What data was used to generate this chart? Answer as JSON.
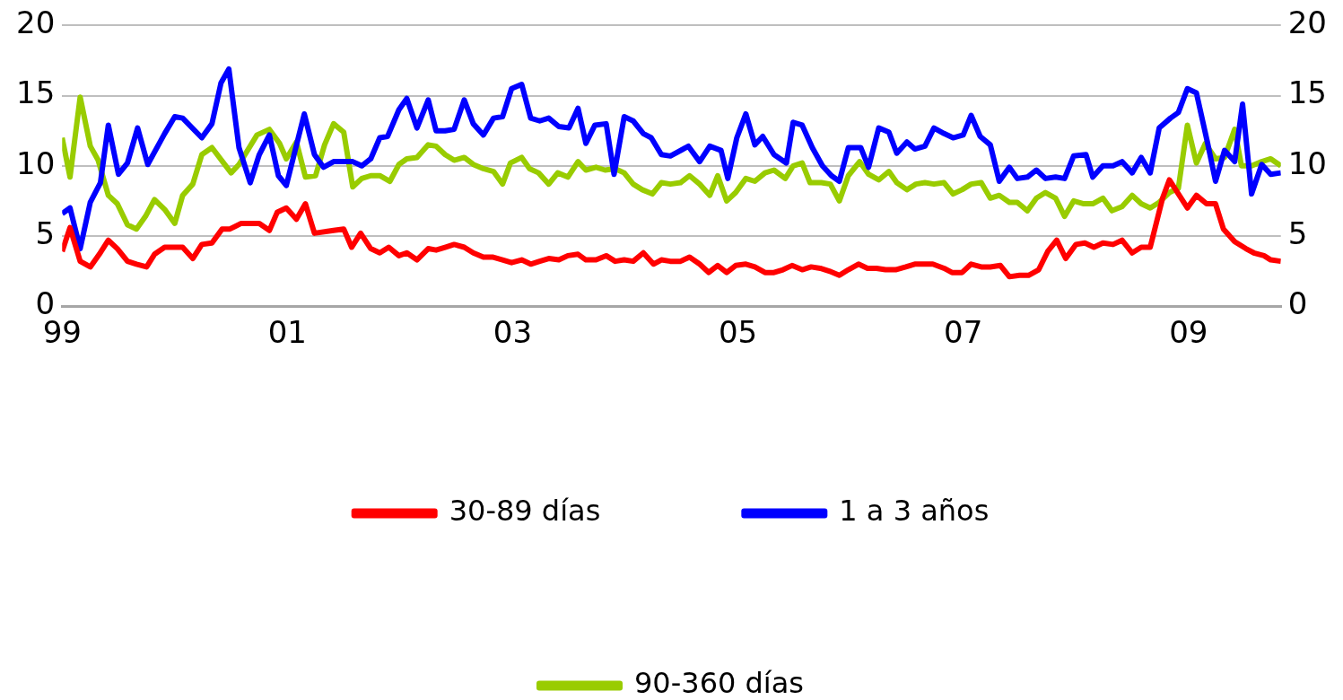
{
  "chart_data": {
    "type": "line",
    "xlim": [
      1999,
      2009.82
    ],
    "xticks": [
      {
        "value": 1999,
        "label": "99"
      },
      {
        "value": 2001,
        "label": "01"
      },
      {
        "value": 2003,
        "label": "03"
      },
      {
        "value": 2005,
        "label": "05"
      },
      {
        "value": 2007,
        "label": "07"
      },
      {
        "value": 2009,
        "label": "09"
      }
    ],
    "ylim": [
      0,
      20
    ],
    "yticks": [
      0,
      5,
      10,
      15,
      20
    ],
    "y2lim": [
      0,
      20
    ],
    "y2ticks": [
      0,
      5,
      10,
      15,
      20
    ],
    "grid": "y",
    "legend": "bottom",
    "series": [
      {
        "name": "30-89 días",
        "color": "#ff0000",
        "x": [
          1999.0,
          1999.07,
          1999.16,
          1999.25,
          1999.33,
          1999.41,
          1999.49,
          1999.58,
          1999.66,
          1999.75,
          1999.82,
          1999.91,
          2000.0,
          2000.07,
          2000.16,
          2000.24,
          2000.33,
          2000.42,
          2000.49,
          2000.59,
          2000.67,
          2000.75,
          2000.84,
          2000.91,
          2000.99,
          2001.08,
          2001.16,
          2001.24,
          2001.41,
          2001.5,
          2001.57,
          2001.65,
          2001.74,
          2001.82,
          2001.9,
          2001.99,
          2002.06,
          2002.15,
          2002.25,
          2002.32,
          2002.4,
          2002.48,
          2002.57,
          2002.65,
          2002.74,
          2002.82,
          2002.91,
          2002.99,
          2003.08,
          2003.16,
          2003.24,
          2003.32,
          2003.41,
          2003.49,
          2003.58,
          2003.65,
          2003.74,
          2003.83,
          2003.91,
          2003.99,
          2004.07,
          2004.16,
          2004.25,
          2004.32,
          2004.4,
          2004.49,
          2004.57,
          2004.66,
          2004.74,
          2004.82,
          2004.9,
          2004.98,
          2005.07,
          2005.15,
          2005.24,
          2005.32,
          2005.4,
          2005.48,
          2005.57,
          2005.65,
          2005.73,
          2005.81,
          2005.9,
          2005.98,
          2006.07,
          2006.15,
          2006.23,
          2006.31,
          2006.4,
          2006.49,
          2006.57,
          2006.65,
          2006.73,
          2006.83,
          2006.9,
          2006.99,
          2007.07,
          2007.16,
          2007.24,
          2007.33,
          2007.41,
          2007.5,
          2007.58,
          2007.67,
          2007.75,
          2007.83,
          2007.91,
          2008.0,
          2008.08,
          2008.16,
          2008.24,
          2008.33,
          2008.41,
          2008.5,
          2008.58,
          2008.66,
          2008.77,
          2008.83,
          2008.99,
          2009.07,
          2009.16,
          2009.24,
          2009.31,
          2009.41,
          2009.51,
          2009.58,
          2009.67,
          2009.73,
          2009.82
        ],
        "values": [
          3.9,
          5.6,
          3.2,
          2.8,
          3.7,
          4.7,
          4.1,
          3.2,
          3.0,
          2.8,
          3.7,
          4.2,
          4.2,
          4.2,
          3.4,
          4.4,
          4.5,
          5.5,
          5.5,
          5.9,
          5.9,
          5.9,
          5.4,
          6.7,
          7.0,
          6.2,
          7.3,
          5.2,
          5.4,
          5.5,
          4.2,
          5.2,
          4.1,
          3.8,
          4.2,
          3.6,
          3.8,
          3.3,
          4.1,
          4.0,
          4.2,
          4.4,
          4.2,
          3.8,
          3.5,
          3.5,
          3.3,
          3.1,
          3.3,
          3.0,
          3.2,
          3.4,
          3.3,
          3.6,
          3.7,
          3.3,
          3.3,
          3.6,
          3.2,
          3.3,
          3.2,
          3.8,
          3.0,
          3.3,
          3.2,
          3.2,
          3.5,
          3.0,
          2.4,
          2.9,
          2.4,
          2.9,
          3.0,
          2.8,
          2.4,
          2.4,
          2.6,
          2.9,
          2.6,
          2.8,
          2.7,
          2.5,
          2.2,
          2.6,
          3.0,
          2.7,
          2.7,
          2.6,
          2.6,
          2.8,
          3.0,
          3.0,
          3.0,
          2.7,
          2.4,
          2.4,
          3.0,
          2.8,
          2.8,
          2.9,
          2.1,
          2.2,
          2.2,
          2.6,
          3.9,
          4.7,
          3.4,
          4.4,
          4.5,
          4.2,
          4.5,
          4.4,
          4.7,
          3.8,
          4.2,
          4.2,
          7.7,
          9.0,
          7.0,
          7.9,
          7.3,
          7.3,
          5.5,
          4.6,
          4.1,
          3.8,
          3.6,
          3.3,
          3.2
        ]
      },
      {
        "name": "1 a 3 años",
        "color": "#0000ff",
        "x": [
          1999.0,
          1999.07,
          1999.16,
          1999.25,
          1999.34,
          1999.41,
          1999.5,
          1999.58,
          1999.67,
          1999.76,
          1999.91,
          2000.0,
          2000.07,
          2000.24,
          2000.33,
          2000.41,
          2000.48,
          2000.57,
          2000.67,
          2000.75,
          2000.84,
          2000.92,
          2000.99,
          2001.15,
          2001.24,
          2001.32,
          2001.41,
          2001.58,
          2001.66,
          2001.74,
          2001.82,
          2001.89,
          2001.99,
          2002.06,
          2002.15,
          2002.25,
          2002.32,
          2002.4,
          2002.48,
          2002.57,
          2002.65,
          2002.74,
          2002.83,
          2002.91,
          2002.99,
          2003.08,
          2003.16,
          2003.24,
          2003.32,
          2003.41,
          2003.5,
          2003.58,
          2003.65,
          2003.73,
          2003.83,
          2003.9,
          2003.99,
          2004.07,
          2004.16,
          2004.23,
          2004.32,
          2004.4,
          2004.56,
          2004.66,
          2004.75,
          2004.85,
          2004.91,
          2004.99,
          2005.07,
          2005.15,
          2005.22,
          2005.32,
          2005.43,
          2005.49,
          2005.57,
          2005.66,
          2005.75,
          2005.83,
          2005.9,
          2005.98,
          2006.09,
          2006.16,
          2006.25,
          2006.34,
          2006.41,
          2006.5,
          2006.57,
          2006.66,
          2006.74,
          2006.83,
          2006.91,
          2007.0,
          2007.07,
          2007.15,
          2007.24,
          2007.32,
          2007.41,
          2007.48,
          2007.57,
          2007.65,
          2007.73,
          2007.82,
          2007.9,
          2007.98,
          2008.09,
          2008.15,
          2008.24,
          2008.33,
          2008.41,
          2008.5,
          2008.58,
          2008.66,
          2008.74,
          2008.84,
          2008.91,
          2008.99,
          2009.07,
          2009.17,
          2009.24,
          2009.32,
          2009.41,
          2009.48,
          2009.56,
          2009.65,
          2009.73,
          2009.82
        ],
        "values": [
          6.6,
          7.0,
          4.1,
          7.4,
          8.8,
          12.9,
          9.4,
          10.2,
          12.7,
          10.1,
          12.3,
          13.5,
          13.4,
          12.0,
          13.0,
          15.9,
          16.9,
          11.3,
          8.8,
          10.8,
          12.2,
          9.3,
          8.6,
          13.7,
          10.8,
          9.9,
          10.3,
          10.3,
          10.0,
          10.5,
          12.0,
          12.1,
          14.0,
          14.8,
          12.7,
          14.7,
          12.5,
          12.5,
          12.6,
          14.7,
          13.0,
          12.2,
          13.4,
          13.5,
          15.5,
          15.8,
          13.4,
          13.2,
          13.4,
          12.8,
          12.7,
          14.1,
          11.6,
          12.9,
          13.0,
          9.4,
          13.5,
          13.2,
          12.3,
          12.0,
          10.8,
          10.7,
          11.4,
          10.3,
          11.4,
          11.1,
          9.1,
          12.0,
          13.7,
          11.5,
          12.1,
          10.8,
          10.2,
          13.1,
          12.9,
          11.3,
          10.0,
          9.3,
          8.9,
          11.3,
          11.3,
          9.9,
          12.7,
          12.4,
          10.9,
          11.7,
          11.2,
          11.4,
          12.7,
          12.3,
          12.0,
          12.2,
          13.6,
          12.1,
          11.5,
          8.9,
          9.9,
          9.1,
          9.2,
          9.7,
          9.1,
          9.2,
          9.1,
          10.7,
          10.8,
          9.2,
          10.0,
          10.0,
          10.3,
          9.5,
          10.6,
          9.5,
          12.7,
          13.4,
          13.8,
          15.5,
          15.2,
          11.6,
          8.9,
          11.1,
          10.3,
          14.4,
          8.0,
          10.1,
          9.4,
          9.5
        ]
      },
      {
        "name": "90-360 días",
        "color": "#99cc00",
        "x": [
          1999.0,
          1999.07,
          1999.16,
          1999.25,
          1999.32,
          1999.41,
          1999.49,
          1999.58,
          1999.66,
          1999.74,
          1999.82,
          1999.91,
          2000.0,
          2000.07,
          2000.16,
          2000.24,
          2000.33,
          2000.5,
          2000.57,
          2000.73,
          2000.84,
          2000.93,
          2000.99,
          2001.08,
          2001.16,
          2001.25,
          2001.33,
          2001.41,
          2001.5,
          2001.58,
          2001.66,
          2001.74,
          2001.82,
          2001.91,
          2001.99,
          2002.06,
          2002.15,
          2002.25,
          2002.32,
          2002.4,
          2002.48,
          2002.57,
          2002.65,
          2002.74,
          2002.83,
          2002.91,
          2002.98,
          2003.08,
          2003.15,
          2003.23,
          2003.32,
          2003.4,
          2003.49,
          2003.58,
          2003.65,
          2003.74,
          2003.82,
          2003.91,
          2003.99,
          2004.07,
          2004.15,
          2004.24,
          2004.32,
          2004.4,
          2004.49,
          2004.57,
          2004.66,
          2004.75,
          2004.82,
          2004.9,
          2004.98,
          2005.07,
          2005.15,
          2005.24,
          2005.32,
          2005.42,
          2005.49,
          2005.57,
          2005.64,
          2005.74,
          2005.82,
          2005.9,
          2005.98,
          2006.08,
          2006.16,
          2006.25,
          2006.34,
          2006.41,
          2006.5,
          2006.58,
          2006.66,
          2006.74,
          2006.83,
          2006.91,
          2006.99,
          2007.07,
          2007.16,
          2007.24,
          2007.32,
          2007.41,
          2007.48,
          2007.57,
          2007.65,
          2007.73,
          2007.82,
          2007.9,
          2007.98,
          2008.07,
          2008.15,
          2008.24,
          2008.32,
          2008.41,
          2008.5,
          2008.58,
          2008.66,
          2008.74,
          2008.83,
          2008.91,
          2008.99,
          2009.07,
          2009.15,
          2009.24,
          2009.32,
          2009.41,
          2009.47,
          2009.56,
          2009.65,
          2009.73,
          2009.82
        ],
        "values": [
          12.0,
          9.2,
          14.9,
          11.4,
          10.4,
          7.9,
          7.3,
          5.8,
          5.5,
          6.4,
          7.6,
          6.9,
          5.9,
          7.9,
          8.7,
          10.8,
          11.3,
          9.5,
          10.1,
          12.2,
          12.6,
          11.6,
          10.5,
          11.7,
          9.2,
          9.3,
          11.5,
          13.0,
          12.4,
          8.5,
          9.1,
          9.3,
          9.3,
          8.9,
          10.1,
          10.5,
          10.6,
          11.5,
          11.4,
          10.8,
          10.4,
          10.6,
          10.1,
          9.8,
          9.6,
          8.7,
          10.2,
          10.6,
          9.8,
          9.5,
          8.7,
          9.5,
          9.2,
          10.3,
          9.7,
          9.9,
          9.7,
          9.8,
          9.5,
          8.7,
          8.3,
          8.0,
          8.8,
          8.7,
          8.8,
          9.3,
          8.7,
          7.9,
          9.3,
          7.5,
          8.1,
          9.1,
          8.9,
          9.5,
          9.7,
          9.1,
          10.0,
          10.2,
          8.8,
          8.8,
          8.7,
          7.5,
          9.3,
          10.3,
          9.4,
          9.0,
          9.6,
          8.8,
          8.3,
          8.7,
          8.8,
          8.7,
          8.8,
          8.0,
          8.3,
          8.7,
          8.8,
          7.7,
          7.9,
          7.4,
          7.4,
          6.8,
          7.7,
          8.1,
          7.7,
          6.4,
          7.5,
          7.3,
          7.3,
          7.7,
          6.8,
          7.1,
          7.9,
          7.3,
          7.0,
          7.4,
          8.1,
          8.4,
          12.9,
          10.2,
          11.6,
          10.5,
          10.6,
          12.6,
          10.0,
          10.0,
          10.3,
          10.5,
          10.0
        ]
      }
    ]
  }
}
